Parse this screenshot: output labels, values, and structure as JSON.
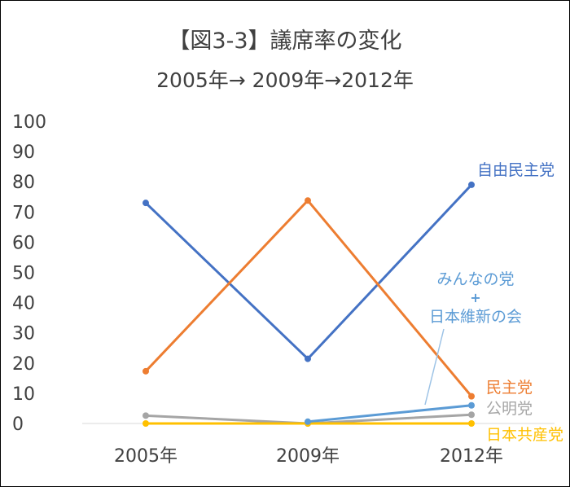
{
  "chart_data": {
    "type": "line",
    "title": "【図3-3】議席率の変化",
    "subtitle": "2005年→ 2009年→2012年",
    "categories": [
      "2005年",
      "2009年",
      "2012年"
    ],
    "ylim": [
      0,
      100
    ],
    "yticks": [
      0,
      10,
      20,
      30,
      40,
      50,
      60,
      70,
      80,
      90,
      100
    ],
    "grid": false,
    "series": [
      {
        "name": "自由民主党",
        "values": [
          73,
          21.4,
          79
        ],
        "color": "#4472C4"
      },
      {
        "name": "民主党",
        "values": [
          17.3,
          73.8,
          9
        ],
        "color": "#ED7D31"
      },
      {
        "name": "公明党",
        "values": [
          2.6,
          0,
          2.9
        ],
        "color": "#A5A5A5"
      },
      {
        "name": "日本共産党",
        "values": [
          0,
          0,
          0
        ],
        "color": "#FFC000"
      },
      {
        "name": "みんなの党\n+\n日本維新の会",
        "values": [
          null,
          0.6,
          6
        ],
        "color": "#5B9BD5"
      }
    ],
    "labels": [
      {
        "lines": [
          "自由民主党"
        ],
        "color": "#4472C4"
      },
      {
        "lines": [
          "民主党"
        ],
        "color": "#ED7D31"
      },
      {
        "lines": [
          "公明党"
        ],
        "color": "#A5A5A5"
      },
      {
        "lines": [
          "日本共産党"
        ],
        "color": "#FFC000"
      },
      {
        "lines": [
          "みんなの党",
          "+",
          "日本維新の会"
        ],
        "color": "#5B9BD5"
      }
    ]
  }
}
